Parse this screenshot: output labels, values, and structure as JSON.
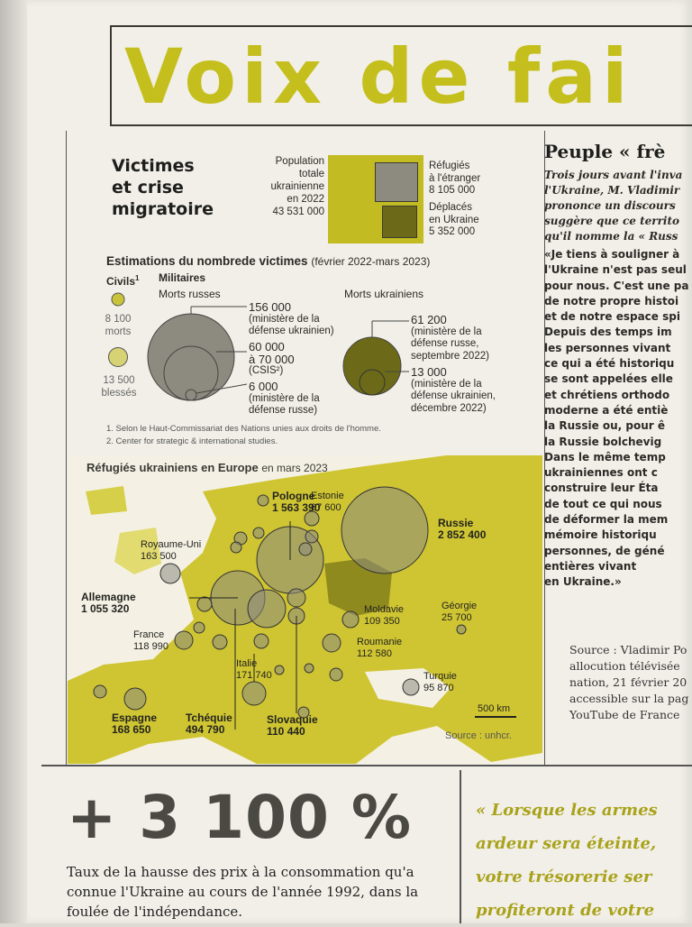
{
  "header": {
    "title": "Voix de fai"
  },
  "infographic": {
    "title_lines": [
      "Victimes",
      "et crise",
      "migratoire"
    ],
    "population": {
      "label_lines": [
        "Population",
        "totale",
        "ukrainienne",
        "en 2022"
      ],
      "value": "43 531 000"
    },
    "refugees": {
      "label_lines": [
        "Réfugiés",
        "à l'étranger"
      ],
      "value": "8 105 000"
    },
    "displaced": {
      "label_lines": [
        "Déplacés",
        "en Ukraine"
      ],
      "value": "5 352 000"
    },
    "estimates_title": "Estimations du nombrede victimes",
    "estimates_period": "(février 2022-mars 2023)",
    "civils_label": "Civils",
    "civils_sup": "1",
    "civils_dead_lines": [
      "8 100",
      "morts"
    ],
    "civils_injured_lines": [
      "13 500",
      "blessés"
    ],
    "militaires_label": "Militaires",
    "russian_dead_label": "Morts russes",
    "ukrainian_dead_label": "Morts ukrainiens",
    "russian_estimates": [
      {
        "value": "156 000",
        "source_lines": [
          "(ministère de la",
          "défense ukrainien)"
        ]
      },
      {
        "value_lines": [
          "60 000",
          "à 70 000"
        ],
        "source_lines": [
          "(CSIS²)"
        ]
      },
      {
        "value": "6 000",
        "source_lines": [
          "(ministère de la",
          "défense russe)"
        ]
      }
    ],
    "ukrainian_estimates": [
      {
        "value": "61 200",
        "source_lines": [
          "(ministère de la",
          "défense russe,",
          "septembre 2022)"
        ]
      },
      {
        "value": "13 000",
        "source_lines": [
          "(ministère de la",
          "défense ukrainien,",
          "décembre 2022)"
        ]
      }
    ],
    "footnotes": [
      "1. Selon le Haut-Commissariat des Nations unies aux droits de l'homme.",
      "2. Center for strategic & international studies."
    ],
    "map": {
      "title": "Réfugiés ukrainiens en Europe",
      "period": "en mars 2023",
      "scale": "500 km",
      "source": "Source : unhcr.",
      "countries": [
        {
          "name": "Pologne",
          "value": "1 563 390"
        },
        {
          "name": "Estonie",
          "value": "67 600"
        },
        {
          "name": "Russie",
          "value": "2 852 400"
        },
        {
          "name": "Royaume-Uni",
          "value": "163 500"
        },
        {
          "name": "Allemagne",
          "value": "1 055 320"
        },
        {
          "name": "Moldavie",
          "value": "109 350"
        },
        {
          "name": "Géorgie",
          "value": "25 700"
        },
        {
          "name": "France",
          "value": "118 990"
        },
        {
          "name": "Roumanie",
          "value": "112 580"
        },
        {
          "name": "Italie",
          "value": "171 740"
        },
        {
          "name": "Turquie",
          "value": "95 870"
        },
        {
          "name": "Espagne",
          "value": "168 650"
        },
        {
          "name": "Tchéquie",
          "value": "494 790"
        },
        {
          "name": "Slovaquie",
          "value": "110 440"
        }
      ]
    }
  },
  "sidebar": {
    "title": "Peuple « frè",
    "intro_lines": [
      "Trois jours avant l'inva",
      "l'Ukraine, M. Vladimir",
      "prononce un discours",
      "suggère que ce territo",
      "qu'il nomme la « Russ"
    ],
    "quote_lines": [
      "«Je tiens à souligner à",
      "l'Ukraine n'est pas seul",
      "pour nous. C'est une pa",
      "de notre propre histoi",
      "et de notre espace spi",
      "Depuis des temps im",
      "les personnes vivant",
      "ce qui a été historiqu",
      "se sont appelées elle",
      "et chrétiens orthodo",
      "moderne a été entiè",
      "la Russie ou, pour ê",
      "la Russie bolchevig",
      "Dans le même temp",
      "ukrainiennes ont c",
      "construire leur Éta",
      "de tout ce qui nous",
      "de déformer la mem",
      "mémoire historiqu",
      "personnes, de géné",
      "entières vivant",
      "en Ukraine.»"
    ],
    "source_lines": [
      "Source : Vladimir Po",
      "allocution télévisée",
      "nation, 21 février 20",
      "accessible sur la pag",
      "YouTube de France"
    ]
  },
  "bottom": {
    "stat": "+ 3 100 %",
    "stat_caption": "Taux de la hausse des prix à la consommation qu'a connue l'Ukraine au cours de l'année 1992, dans la foulée de l'indépendance.",
    "quote_lines": [
      "« Lorsque les armes",
      "ardeur sera éteinte,",
      "votre trésorerie ser",
      "profiteront de votre"
    ]
  },
  "colors": {
    "accent": "#c5bf1d",
    "map_land": "#cfc532",
    "map_dark": "#8f8a1e",
    "bubble": "#8d8b7f",
    "ukraine_bubble": "#6c6a18"
  }
}
